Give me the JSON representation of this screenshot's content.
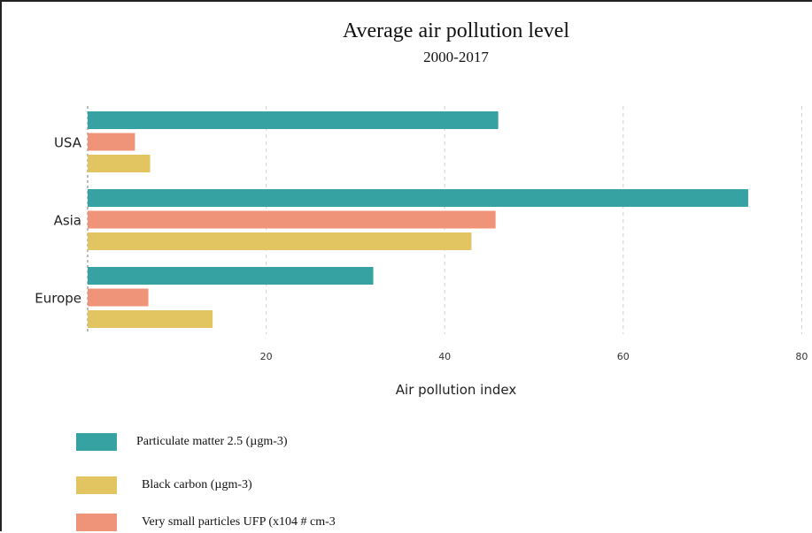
{
  "chart_data": {
    "type": "bar",
    "orientation": "horizontal",
    "title": "Average air pollution level",
    "subtitle": "2000-2017",
    "xlabel": "Air pollution index",
    "ylabel": "",
    "xlim": [
      0,
      80
    ],
    "xticks": [
      20,
      40,
      60,
      80
    ],
    "grid": true,
    "legend_position": "bottom-left",
    "categories": [
      "USA",
      "Asia",
      "Europe"
    ],
    "series": [
      {
        "name": "Particulate matter 2.5 (µgm-3)",
        "color": "#37a2a2",
        "values": [
          46,
          74,
          32
        ]
      },
      {
        "name": "Very small particles UFP (x104 # cm-3",
        "color": "#ef9478",
        "values": [
          5.3,
          45.7,
          6.8
        ]
      },
      {
        "name": "Black carbon (µgm-3)",
        "color": "#e2c561",
        "values": [
          7,
          43,
          14
        ]
      }
    ],
    "legend_order": [
      0,
      2,
      1
    ]
  }
}
